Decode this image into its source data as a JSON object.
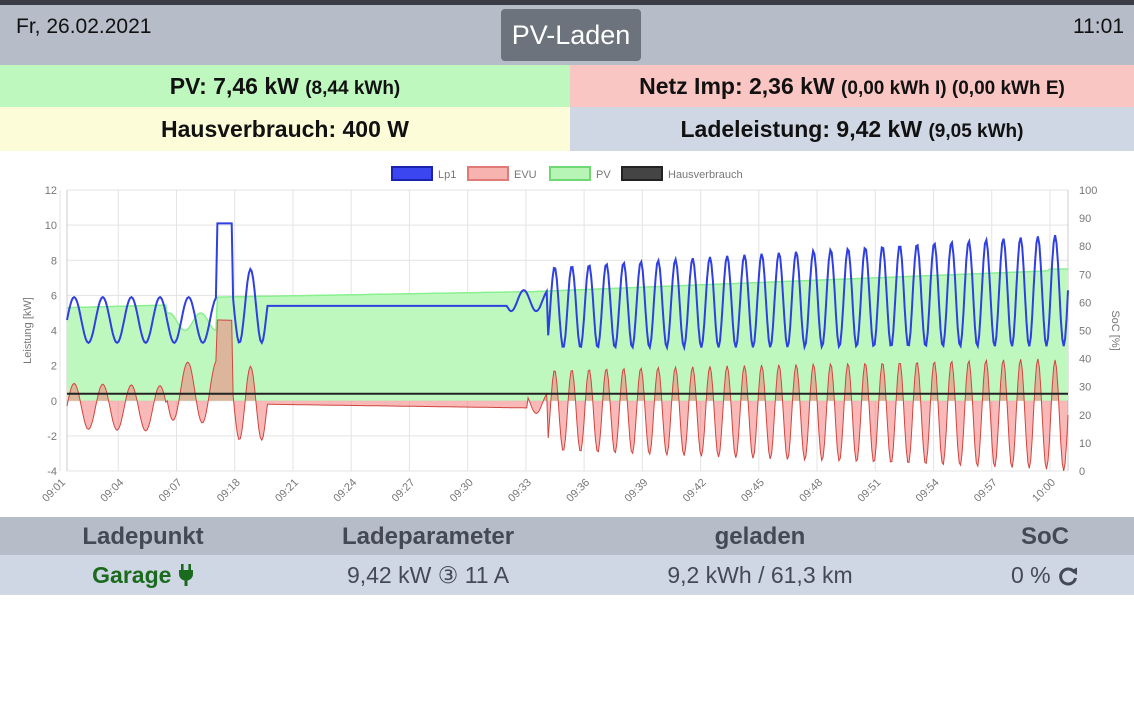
{
  "header": {
    "date": "Fr, 26.02.2021",
    "time": "11:01",
    "mode_button": "PV-Laden"
  },
  "summary": {
    "pv_main": "PV: 7,46 kW",
    "pv_sub": "(8,44 kWh)",
    "netz_main": "Netz Imp: 2,36 kW",
    "netz_sub": "(0,00 kWh I) (0,00 kWh E)",
    "haus_main": "Hausverbrauch: 400 W",
    "lade_main": "Ladeleistung: 9,42 kW",
    "lade_sub": "(9,05 kWh)"
  },
  "colors": {
    "lp1": "#2f3fe0",
    "evu": "#f2807d",
    "pv": "#89f08f",
    "haus": "#222222",
    "garage": "#1a6b1d"
  },
  "chart_data": {
    "type": "line",
    "legend": [
      "Lp1",
      "EVU",
      "PV",
      "Hausverbrauch"
    ],
    "legend_position": "top",
    "ylabel": "Leistung [kW]",
    "y2label": "SoC [%]",
    "ylim": [
      -4,
      12
    ],
    "y_ticks": [
      "12",
      "10",
      "8",
      "6",
      "4",
      "2",
      "0",
      "-2",
      "-4"
    ],
    "y2lim": [
      0,
      100
    ],
    "y2_ticks": [
      "100",
      "90",
      "80",
      "70",
      "60",
      "50",
      "40",
      "30",
      "20",
      "10",
      "0"
    ],
    "x_ticks": [
      "09:01",
      "09:04",
      "09:07",
      "09:18",
      "09:21",
      "09:24",
      "09:27",
      "09:30",
      "09:33",
      "09:36",
      "09:39",
      "09:42",
      "09:45",
      "09:48",
      "09:51",
      "09:54",
      "09:57",
      "10:00"
    ],
    "grid": true,
    "series": [
      {
        "name": "Lp1",
        "note": "oscillating 3-9.4 kW"
      },
      {
        "name": "EVU",
        "note": "oscillating -3.5 to 2.7 kW"
      },
      {
        "name": "PV",
        "note": "rising 5.3 to 7.5 kW"
      },
      {
        "name": "Hausverbrauch",
        "value": 0.4
      }
    ]
  },
  "table": {
    "headers": [
      "Ladepunkt",
      "Ladeparameter",
      "geladen",
      "SoC"
    ],
    "row": {
      "ladepunkt": "Garage",
      "ladeparameter": "9,42 kW ③ 11 A",
      "geladen": "9,2 kWh / 61,3 km",
      "soc": "0 %"
    }
  }
}
